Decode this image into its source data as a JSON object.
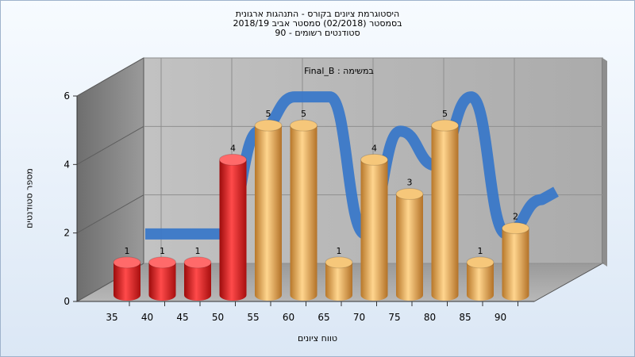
{
  "chart": {
    "title_lines": [
      "היסטוגרמת ציונים בקורס - התנהגות ארגונית",
      "בסמסטר  (02/2018)  סמסטר אביב 2018/19",
      "סטודנטים רשומים - 90"
    ],
    "inner_label": "במשימה : Final_B",
    "ylabel": "מספר סטודנטים",
    "xlabel": "טווח ציונים"
  },
  "colors": {
    "bar_fail": "#e01e1e",
    "bar_pass": "#e8a94a",
    "ribbon": "#3a78c8",
    "back_wall": "#b9b9b9",
    "side_wall": "#8a8a8a",
    "floor": "#a6a6a6"
  },
  "chart_data": {
    "type": "bar",
    "categories": [
      "35",
      "40",
      "45",
      "50",
      "55",
      "60",
      "65",
      "70",
      "75",
      "80",
      "85",
      "90"
    ],
    "values": [
      1,
      1,
      1,
      4,
      5,
      5,
      1,
      4,
      3,
      5,
      1,
      2
    ],
    "bar_groups": [
      "fail",
      "fail",
      "fail",
      "fail",
      "pass",
      "pass",
      "pass",
      "pass",
      "pass",
      "pass",
      "pass",
      "pass"
    ],
    "yticks": [
      "0",
      "2",
      "4",
      "6"
    ],
    "ylim": [
      0,
      6
    ],
    "grid": true,
    "overlay": "ribbon"
  }
}
